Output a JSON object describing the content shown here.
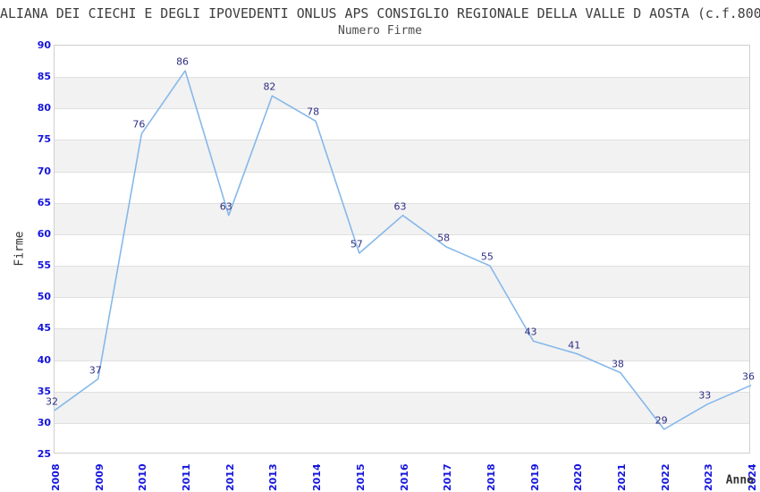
{
  "chart_data": {
    "type": "line",
    "title": "ALIANA DEI CIECHI E DEGLI IPOVEDENTI ONLUS APS CONSIGLIO REGIONALE DELLA VALLE D AOSTA (c.f.800",
    "subtitle": "Numero Firme",
    "xlabel": "Anno",
    "ylabel": "Firme",
    "categories": [
      "2008",
      "2009",
      "2010",
      "2011",
      "2012",
      "2013",
      "2014",
      "2015",
      "2016",
      "2017",
      "2018",
      "2019",
      "2020",
      "2021",
      "2022",
      "2023",
      "2024"
    ],
    "series": [
      {
        "name": "Numero Firme",
        "values": [
          32,
          37,
          76,
          86,
          63,
          82,
          78,
          57,
          63,
          58,
          55,
          43,
          41,
          38,
          29,
          33,
          36
        ]
      }
    ],
    "ylim": [
      25,
      90
    ],
    "ytick_step": 5,
    "yticks": [
      90,
      85,
      80,
      75,
      70,
      65,
      60,
      55,
      50,
      45,
      40,
      35,
      30,
      25
    ],
    "grid": "horizontal lines with alternating shaded bands",
    "legend_position": "none",
    "data_labels_shown": true,
    "colors": {
      "line": "#86b8ea",
      "tick_label": "#1414dd",
      "data_label": "#2e2e85",
      "band_fill": "#f2f2f2",
      "gridline": "#e0e0e0",
      "plot_border": "#cfcfcf",
      "title_text": "#3d3d3d",
      "axis_title_text": "#333333"
    }
  }
}
